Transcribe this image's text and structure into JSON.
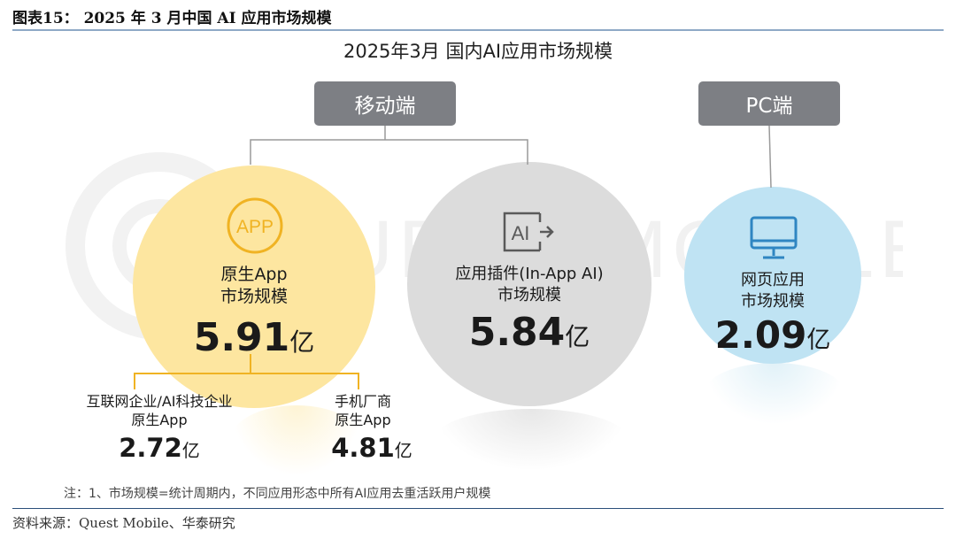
{
  "figure": {
    "title": "图表15：  2025 年 3 月中国 AI 应用市场规模",
    "source": "资料来源：Quest Mobile、华泰研究"
  },
  "panel": {
    "title": "2025年3月  国内AI应用市场规模",
    "watermark": "QUEST MOBILE",
    "note": "注：1、市场规模=统计周期内，不同应用形态中所有AI应用去重活跃用户规模"
  },
  "segments": {
    "mobile": "移动端",
    "pc": "PC端"
  },
  "nodes": {
    "native": {
      "icon_text": "APP",
      "label_line1": "原生App",
      "label_line2": "市场规模",
      "value": "5.91",
      "unit": "亿",
      "color": "#fde6a0",
      "icon": "app-icon"
    },
    "plugin": {
      "icon_text": "AI",
      "label_line1": "应用插件(In-App AI)",
      "label_line2": "市场规模",
      "value": "5.84",
      "unit": "亿",
      "color": "#dcdcdc",
      "icon": "ai-plugin-icon"
    },
    "web": {
      "label_line1": "网页应用",
      "label_line2": "市场规模",
      "value": "2.09",
      "unit": "亿",
      "color": "#bfe3f3",
      "icon": "monitor-icon"
    }
  },
  "sub_nodes": [
    {
      "label_line1": "互联网企业/AI科技企业",
      "label_line2": "原生App",
      "value": "2.72",
      "unit": "亿"
    },
    {
      "label_line1": "手机厂商",
      "label_line2": "原生App",
      "value": "4.81",
      "unit": "亿"
    }
  ],
  "colors": {
    "segment_box": "#7d7f84",
    "connector": "#9a9a9a",
    "bracket": "#f0b323",
    "rule": "#2b4f7a"
  }
}
